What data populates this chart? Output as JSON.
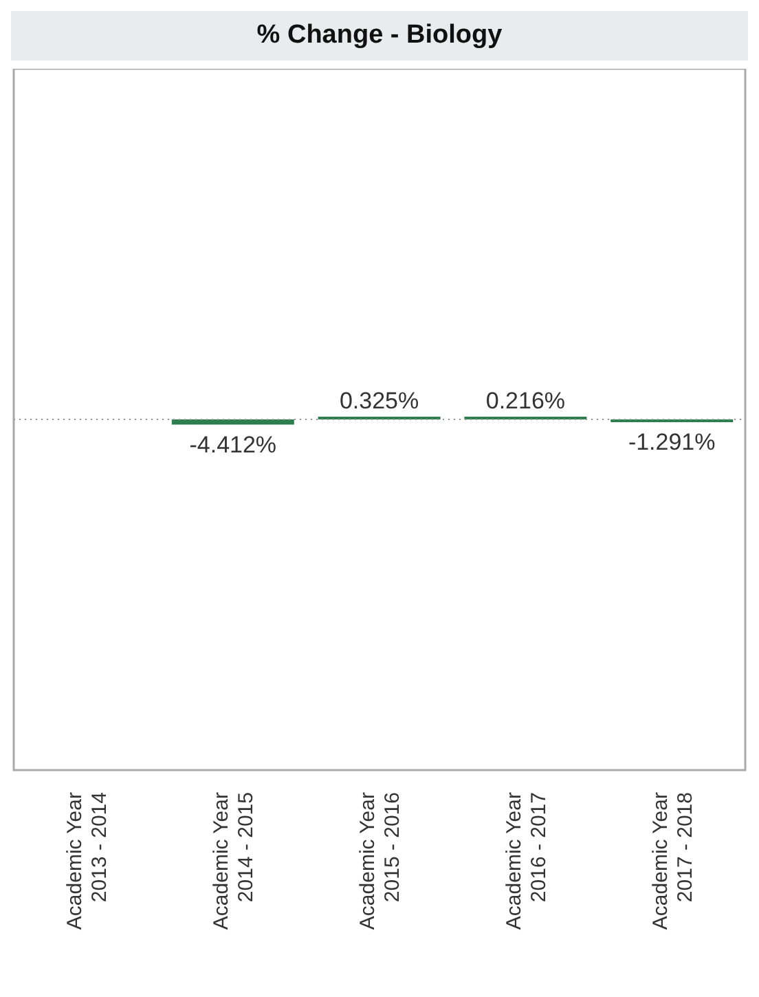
{
  "chart_data": {
    "type": "bar",
    "title": "% Change - Biology",
    "categories": [
      "Academic Year\n2013 - 2014",
      "Academic Year\n2014 - 2015",
      "Academic Year\n2015 - 2016",
      "Academic Year\n2016 - 2017",
      "Academic Year\n2017 - 2018"
    ],
    "values": [
      null,
      -4.412,
      0.325,
      0.216,
      -1.291
    ],
    "value_labels": [
      null,
      "-4.412%",
      "0.325%",
      "0.216%",
      "-1.291%"
    ],
    "color": "#2e7d4f",
    "ylim": [
      -300,
      300
    ],
    "tick_labels": "x",
    "ref_lines": [
      {
        "axis": "y",
        "value": 0,
        "line_style": "dotted",
        "color": "#999999"
      }
    ]
  }
}
